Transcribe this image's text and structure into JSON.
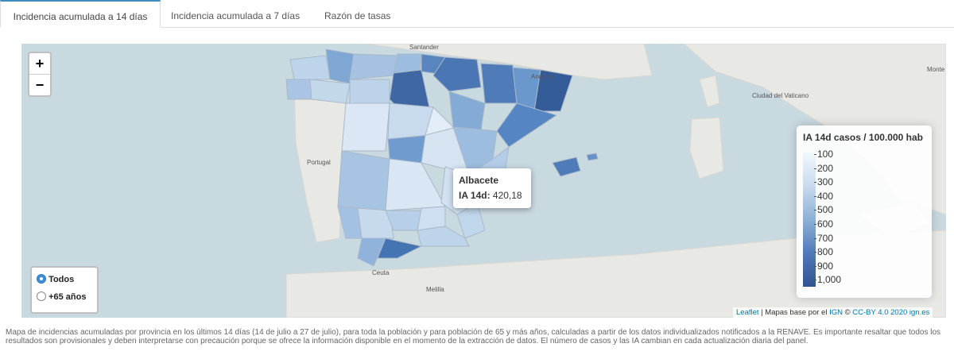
{
  "tabs": [
    "Incidencia acumulada a 14 días",
    "Incidencia acumulada a 7 días",
    "Razón de tasas"
  ],
  "zoom": {
    "in": "+",
    "out": "−"
  },
  "map_labels": {
    "santander": "Santander",
    "andorra": "Andorra",
    "portugal": "Portugal",
    "vaticano": "Ciudad del Vaticano",
    "monte": "Monte",
    "ceuta": "Ceuta",
    "melilla": "Melilla"
  },
  "tooltip": {
    "name": "Albacete",
    "label": "IA 14d:",
    "value": "420,18"
  },
  "legend": {
    "title": "IA 14d casos / 100.000 hab",
    "ticks": [
      "100",
      "200",
      "300",
      "400",
      "500",
      "600",
      "700",
      "800",
      "900",
      "1,000"
    ]
  },
  "radio": {
    "options": [
      "Todos",
      "+65 años"
    ]
  },
  "attribution": {
    "leaflet": "Leaflet",
    "text": "| Mapas base por el",
    "ign": "IGN",
    "copy": "©",
    "license": "CC-BY 4.0 2020 ign.es"
  },
  "caption": "Mapa de incidencias acumuladas por provincia en los últimos 14 días (14 de julio a 27 de julio), para toda la población y para población de 65 y más años, calculadas a partir de los datos individualizados notificados a la RENAVE. Es importante resaltar que todos los resultados son provisionales y deben interpretarse con precaución porque se ofrece la información disponible en el momento de la extracción de datos. El número de casos y las IA cambian en cada actualización diaria del panel."
}
